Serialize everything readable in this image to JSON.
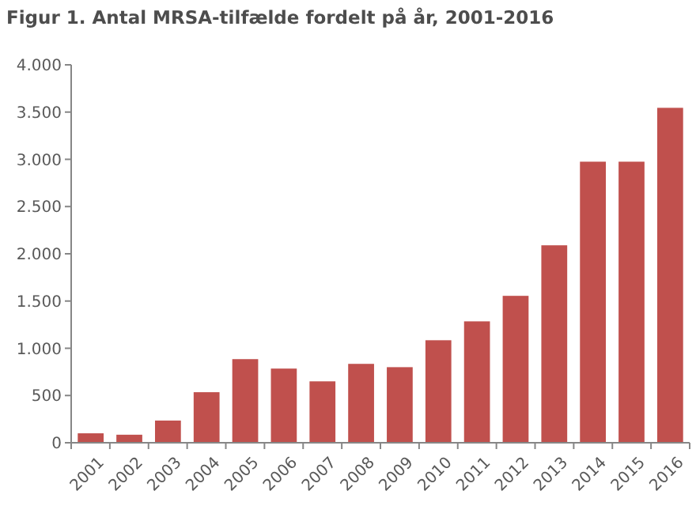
{
  "chart_data": {
    "type": "bar",
    "title": "Figur 1. Antal MRSA-tilfælde fordelt på år, 2001-2016",
    "categories": [
      "2001",
      "2002",
      "2003",
      "2004",
      "2005",
      "2006",
      "2007",
      "2008",
      "2009",
      "2010",
      "2011",
      "2012",
      "2013",
      "2014",
      "2015",
      "2016"
    ],
    "values": [
      100,
      85,
      235,
      535,
      885,
      785,
      650,
      835,
      800,
      1085,
      1285,
      1555,
      2090,
      2975,
      2975,
      3545
    ],
    "color": "#c0504d",
    "ylim": [
      0,
      4000
    ],
    "yticks": [
      0,
      {
        "value": 500,
        "label": "500"
      },
      {
        "value": 1000,
        "label": "1.000"
      },
      {
        "value": 1500,
        "label": "1.500"
      },
      {
        "value": 2000,
        "label": "2.000"
      },
      {
        "value": 2500,
        "label": "2.500"
      },
      {
        "value": 3000,
        "label": "3.000"
      },
      {
        "value": 3500,
        "label": "3.500"
      },
      {
        "value": 4000,
        "label": "4.000"
      }
    ],
    "grid": false
  }
}
